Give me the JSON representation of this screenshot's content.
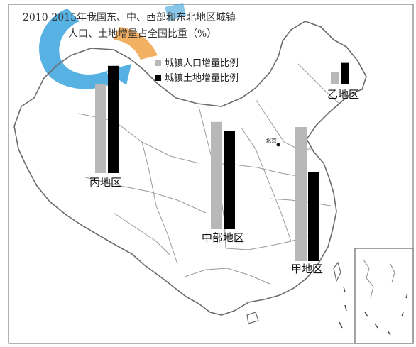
{
  "chart_data": {
    "type": "bar",
    "title": "2010-2015年我国东、中、西部和东北地区城镇人口、土地增量占全国比重（%）",
    "title_lines": [
      "2010-2015年我国东、中、西部和东北地区城镇",
      "人口、土地增量占全国比重（%）"
    ],
    "legend_placement": "top-center",
    "series": [
      {
        "name": "城镇人口增量比例",
        "color": "#b8b8b8",
        "values": [
          30,
          36,
          45,
          4
        ]
      },
      {
        "name": "城镇土地增量比例",
        "color": "#000000",
        "values": [
          36,
          33,
          30,
          7
        ]
      }
    ],
    "categories": [
      "丙地区",
      "中部地区",
      "甲地区",
      "乙地区"
    ],
    "ylim": [
      0,
      100
    ]
  },
  "map_labels": {
    "capital": "北京"
  },
  "colors": {
    "border": "#6a6a6a",
    "province": "#9a9a9a",
    "watermark_blue": "#3aa3dd",
    "watermark_orange": "#f0a347"
  }
}
